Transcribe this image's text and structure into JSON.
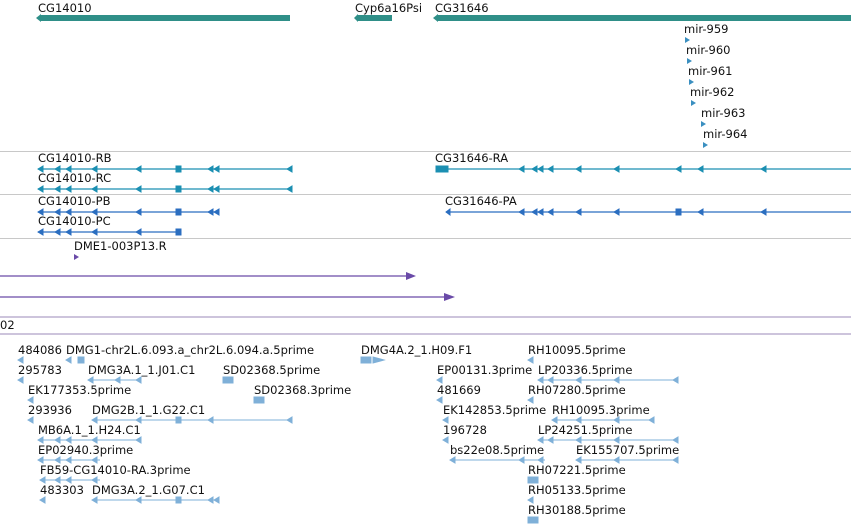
{
  "colors": {
    "gene": "#2f8f88",
    "mirna": "#3a8fc0",
    "transcript_r": "#1b8fb2",
    "transcript_p": "#2b6ec0",
    "clone": "#6a4aa8",
    "est": "#7fb0d8",
    "separator": "#c8c8c8"
  },
  "genes": [
    "CG14010",
    "Cyp6a16Psi",
    "CG31646"
  ],
  "mirnas": [
    "mir-959",
    "mir-960",
    "mir-961",
    "mir-962",
    "mir-963",
    "mir-964"
  ],
  "transcripts": [
    "CG14010-RB",
    "CG14010-RC",
    "CG31646-RA",
    "CG14010-PB",
    "CG14010-PC",
    "CG31646-PA"
  ],
  "clone": "DME1-003P13.R",
  "scaffold_label": "02",
  "ests": [
    "484086",
    "DMG1-chr2L.6.093.a_chr2L.6.094.a.5prime",
    "DMG4A.2_1.H09.F1",
    "RH10095.5prime",
    "295783",
    "DMG3A.1_1.J01.C1",
    "SD02368.5prime",
    "EP00131.3prime",
    "LP20336.5prime",
    "EK177353.5prime",
    "SD02368.3prime",
    "481669",
    "RH07280.5prime",
    "293936",
    "DMG2B.1_1.G22.C1",
    "EK142853.5prime",
    "RH10095.3prime",
    "MB6A.1_1.H24.C1",
    "196728",
    "LP24251.5prime",
    "EP02940.3prime",
    "bs22e08.5prime",
    "EK155707.5prime",
    "FB59-CG14010-RA.3prime",
    "RH07221.5prime",
    "483303",
    "DMG3A.2_1.G07.C1",
    "RH05133.5prime",
    "RH30188.5prime"
  ]
}
